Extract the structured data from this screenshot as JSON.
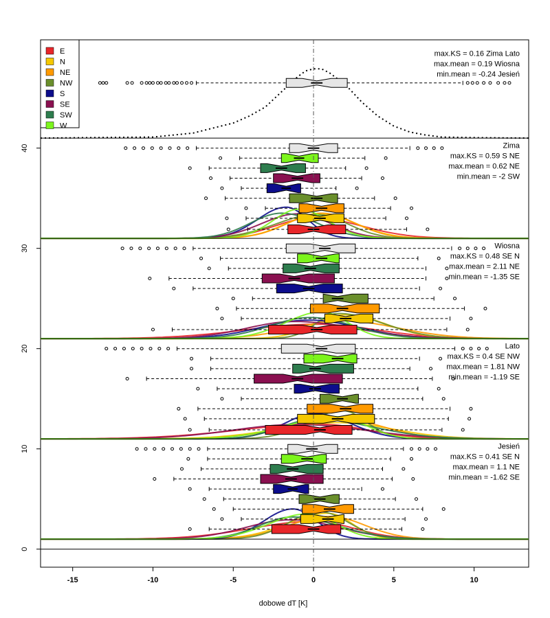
{
  "chart_data": {
    "type": "box-density",
    "xlabel": "dobowe dT [K]",
    "ylabel": "",
    "xlim": [
      -17,
      13.4
    ],
    "ylim": [
      -1.8,
      50.8
    ],
    "x_ticks": [
      -15,
      -10,
      -5,
      0,
      5,
      10
    ],
    "x_tick_labels": [
      "-15",
      "-10",
      "-5",
      "0",
      "5",
      "10"
    ],
    "y_ticks": [
      0,
      10,
      20,
      30,
      40
    ],
    "y_tick_labels": [
      "0",
      "10",
      "20",
      "30",
      "40"
    ],
    "reference_line_x": 0,
    "legend_position": "top-left",
    "legend": [
      {
        "name": "E",
        "color": "#e8262a"
      },
      {
        "name": "N",
        "color": "#f5c800"
      },
      {
        "name": "NE",
        "color": "#ff9a00"
      },
      {
        "name": "NW",
        "color": "#6a8f2c"
      },
      {
        "name": "S",
        "color": "#0d0d8c"
      },
      {
        "name": "SE",
        "color": "#8a1050"
      },
      {
        "name": "SW",
        "color": "#2e7d4e"
      },
      {
        "name": "W",
        "color": "#7cf51c"
      }
    ],
    "overall": {
      "baseline": 41,
      "box": {
        "y": 46.5,
        "q1": -1.7,
        "median": 0.2,
        "q3": 2.1,
        "lo": -7.3,
        "hi": 9.3
      },
      "outliers": [
        -13.3,
        -13.1,
        -12.9,
        -11.6,
        -11.3,
        -10.7,
        -10.4,
        -10.2,
        -10.0,
        -9.7,
        -9.5,
        -9.2,
        -9.0,
        -8.7,
        -8.5,
        -8.2,
        -7.9,
        -7.6,
        9.6,
        9.9,
        10.2,
        10.6,
        11.0,
        11.5,
        11.9,
        12.2
      ],
      "density": [
        [
          -17,
          41.0
        ],
        [
          -10,
          41.1
        ],
        [
          -7.5,
          41.5
        ],
        [
          -6,
          42.1
        ],
        [
          -5,
          42.5
        ],
        [
          -4,
          43.2
        ],
        [
          -3,
          44.1
        ],
        [
          -2,
          45.6
        ],
        [
          -1,
          47.1
        ],
        [
          -0.5,
          47.7
        ],
        [
          0,
          47.9
        ],
        [
          0.5,
          47.9
        ],
        [
          1,
          47.5
        ],
        [
          2,
          46.3
        ],
        [
          3,
          44.6
        ],
        [
          4,
          43.2
        ],
        [
          5,
          42.2
        ],
        [
          6,
          41.6
        ],
        [
          7,
          41.3
        ],
        [
          8,
          41.1
        ],
        [
          10,
          41.05
        ],
        [
          13.4,
          41.0
        ]
      ],
      "stats": [
        "max.KS =  0.16 Zima Lato",
        "max.mean = 0.19 Wiosna",
        "min.mean = -0.24 Jesień"
      ]
    },
    "panels": [
      {
        "name": "Zima",
        "baseline": 31,
        "boxes": [
          {
            "dir": "E",
            "y": 31.9,
            "q1": -1.6,
            "median": 0.0,
            "q3": 2.0,
            "lo": -4.1,
            "hi": 5.8
          },
          {
            "dir": "N",
            "y": 33.0,
            "q1": -1.0,
            "median": 0.4,
            "q3": 1.9,
            "lo": -4.2,
            "hi": 4.5
          },
          {
            "dir": "NE",
            "y": 34.0,
            "q1": -0.9,
            "median": 0.5,
            "q3": 1.9,
            "lo": -3.0,
            "hi": 4.8
          },
          {
            "dir": "NW",
            "y": 35.0,
            "q1": -1.5,
            "median": 0.2,
            "q3": 1.5,
            "lo": -5.5,
            "hi": 3.8
          },
          {
            "dir": "S",
            "y": 36.0,
            "q1": -2.9,
            "median": -1.7,
            "q3": -0.8,
            "lo": -4.5,
            "hi": 1.4
          },
          {
            "dir": "SE",
            "y": 37.0,
            "q1": -2.5,
            "median": -1.0,
            "q3": 0.4,
            "lo": -5.2,
            "hi": 3.0
          },
          {
            "dir": "SW",
            "y": 38.0,
            "q1": -3.3,
            "median": -2.0,
            "q3": -0.5,
            "lo": -6.5,
            "hi": 2.0
          },
          {
            "dir": "W",
            "y": 39.0,
            "q1": -2.0,
            "median": -0.9,
            "q3": 0.3,
            "lo": -4.6,
            "hi": 3.2
          },
          {
            "dir": "all",
            "y": 40.0,
            "q1": -1.5,
            "median": 0.0,
            "q3": 1.5,
            "lo": -7.3,
            "hi": 6.0
          }
        ],
        "stats": [
          "Zima",
          "max.KS = 0.59 S NE",
          "max.mean = 0.62 NE",
          "min.mean = -2 SW"
        ]
      },
      {
        "name": "Wiosna",
        "baseline": 21,
        "boxes": [
          {
            "dir": "E",
            "y": 21.9,
            "q1": -2.8,
            "median": 0.2,
            "q3": 2.7,
            "lo": -8.8,
            "hi": 8.3
          },
          {
            "dir": "N",
            "y": 23.0,
            "q1": 0.7,
            "median": 2.0,
            "q3": 3.7,
            "lo": -4.5,
            "hi": 8.5
          },
          {
            "dir": "NE",
            "y": 24.0,
            "q1": -0.2,
            "median": 1.8,
            "q3": 4.1,
            "lo": -4.8,
            "hi": 9.4
          },
          {
            "dir": "NW",
            "y": 25.0,
            "q1": 0.6,
            "median": 1.5,
            "q3": 3.4,
            "lo": -3.8,
            "hi": 7.5
          },
          {
            "dir": "S",
            "y": 26.0,
            "q1": -2.3,
            "median": -0.3,
            "q3": 1.8,
            "lo": -7.5,
            "hi": 6.6
          },
          {
            "dir": "SE",
            "y": 27.0,
            "q1": -3.2,
            "median": -1.2,
            "q3": 1.3,
            "lo": -9.0,
            "hi": 7.0
          },
          {
            "dir": "SW",
            "y": 28.0,
            "q1": -1.9,
            "median": -0.2,
            "q3": 1.6,
            "lo": -5.3,
            "hi": 7.0
          },
          {
            "dir": "W",
            "y": 29.0,
            "q1": -1.0,
            "median": 0.5,
            "q3": 1.6,
            "lo": -5.8,
            "hi": 6.5
          },
          {
            "dir": "all",
            "y": 30.0,
            "q1": -1.7,
            "median": 0.7,
            "q3": 2.6,
            "lo": -7.5,
            "hi": 8.6
          }
        ],
        "stats": [
          "Wiosna",
          "max.KS = 0.48 SE N",
          "max.mean = 2.11 NE",
          "min.mean = -1.35 SE"
        ]
      },
      {
        "name": "Lato",
        "baseline": 11,
        "boxes": [
          {
            "dir": "E",
            "y": 11.9,
            "q1": -3.0,
            "median": 0.4,
            "q3": 2.4,
            "lo": -6.5,
            "hi": 8.0
          },
          {
            "dir": "N",
            "y": 13.0,
            "q1": -1.0,
            "median": 1.5,
            "q3": 3.8,
            "lo": -6.8,
            "hi": 8.4
          },
          {
            "dir": "NE",
            "y": 14.0,
            "q1": -0.4,
            "median": 2.0,
            "q3": 3.7,
            "lo": -7.2,
            "hi": 8.5
          },
          {
            "dir": "NW",
            "y": 15.0,
            "q1": 0.4,
            "median": 1.8,
            "q3": 2.8,
            "lo": -4.5,
            "hi": 6.8
          },
          {
            "dir": "S",
            "y": 16.0,
            "q1": -1.2,
            "median": 0.1,
            "q3": 1.6,
            "lo": -6.0,
            "hi": 6.5
          },
          {
            "dir": "SE",
            "y": 17.0,
            "q1": -3.7,
            "median": -1.0,
            "q3": 1.8,
            "lo": -10.4,
            "hi": 7.4
          },
          {
            "dir": "SW",
            "y": 18.0,
            "q1": -1.3,
            "median": 0.1,
            "q3": 2.5,
            "lo": -6.4,
            "hi": 6.0
          },
          {
            "dir": "W",
            "y": 19.0,
            "q1": -0.6,
            "median": 1.5,
            "q3": 2.7,
            "lo": -6.4,
            "hi": 6.6
          },
          {
            "dir": "all",
            "y": 20.0,
            "q1": -2.0,
            "median": 0.5,
            "q3": 2.6,
            "lo": -8.5,
            "hi": 8.8
          }
        ],
        "stats": [
          "Lato",
          "max.KS = 0.4 SE NW",
          "max.mean = 1.81 NW",
          "min.mean = -1.19 SE"
        ]
      },
      {
        "name": "Jesień",
        "baseline": 1,
        "boxes": [
          {
            "dir": "E",
            "y": 2.0,
            "q1": -2.6,
            "median": 0.0,
            "q3": 1.7,
            "lo": -6.5,
            "hi": 5.5
          },
          {
            "dir": "N",
            "y": 3.0,
            "q1": -0.8,
            "median": 0.9,
            "q3": 1.9,
            "lo": -4.5,
            "hi": 5.7
          },
          {
            "dir": "NE",
            "y": 4.0,
            "q1": -0.7,
            "median": 1.0,
            "q3": 2.5,
            "lo": -5.0,
            "hi": 6.8
          },
          {
            "dir": "NW",
            "y": 5.0,
            "q1": -0.9,
            "median": 0.4,
            "q3": 1.6,
            "lo": -5.6,
            "hi": 5.1
          },
          {
            "dir": "S",
            "y": 6.0,
            "q1": -2.5,
            "median": -1.3,
            "q3": -0.3,
            "lo": -6.5,
            "hi": 3.0
          },
          {
            "dir": "SE",
            "y": 7.0,
            "q1": -3.3,
            "median": -1.4,
            "q3": 0.6,
            "lo": -8.7,
            "hi": 4.9
          },
          {
            "dir": "SW",
            "y": 8.0,
            "q1": -2.7,
            "median": -1.3,
            "q3": 0.6,
            "lo": -7.0,
            "hi": 4.3
          },
          {
            "dir": "W",
            "y": 9.0,
            "q1": -2.0,
            "median": -0.4,
            "q3": 0.8,
            "lo": -6.6,
            "hi": 4.8
          },
          {
            "dir": "all",
            "y": 10.0,
            "q1": -1.6,
            "median": -0.1,
            "q3": 1.5,
            "lo": -6.6,
            "hi": 5.6
          }
        ],
        "stats": [
          "Jesień",
          "max.KS = 0.41 SE N",
          "max.mean = 1.1 NE",
          "min.mean = -1.62 SE"
        ]
      }
    ]
  }
}
